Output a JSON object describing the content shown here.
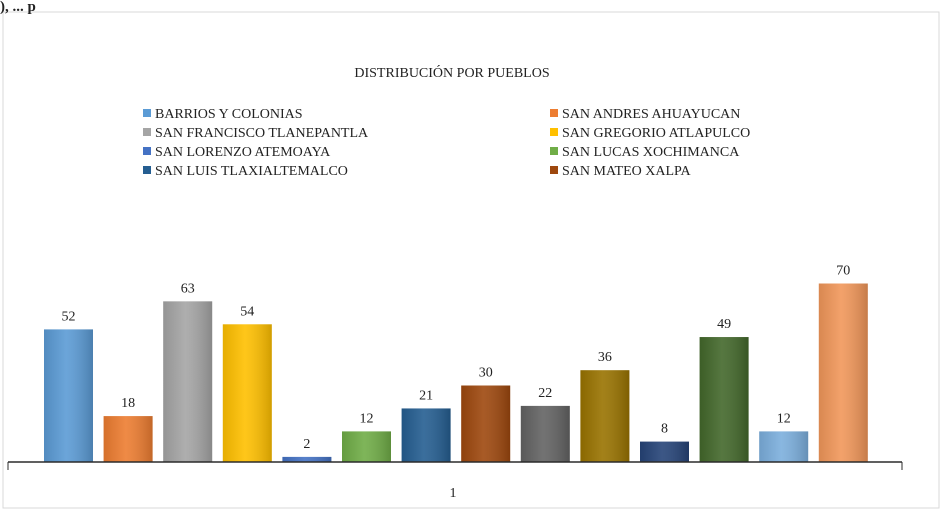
{
  "header": {
    "text": "), ... p"
  },
  "chart_data": {
    "type": "bar",
    "title": "DISTRIBUCIÓN POR PUEBLOS",
    "xlabel": "",
    "ylabel": "",
    "categories": [
      "1"
    ],
    "ylim": [
      0,
      75
    ],
    "grid": false,
    "legend_position": "top",
    "series": [
      {
        "name": "BARRIOS Y COLONIAS",
        "values": [
          52
        ],
        "color": "#5b9bd5"
      },
      {
        "name": "SAN ANDRES AHUAYUCAN",
        "values": [
          18
        ],
        "color": "#ed7d31"
      },
      {
        "name": "SAN FRANCISCO TLANEPANTLA",
        "values": [
          63
        ],
        "color": "#a5a5a5"
      },
      {
        "name": "SAN GREGORIO ATLAPULCO",
        "values": [
          54
        ],
        "color": "#ffc000"
      },
      {
        "name": "SAN LORENZO ATEMOAYA",
        "values": [
          2
        ],
        "color": "#4472c4"
      },
      {
        "name": "SAN LUCAS XOCHIMANCA",
        "values": [
          12
        ],
        "color": "#70ad47"
      },
      {
        "name": "SAN LUIS TLAXIALTEMALCO",
        "values": [
          21
        ],
        "color": "#255e91"
      },
      {
        "name": "SAN MATEO XALPA",
        "values": [
          30
        ],
        "color": "#9e480e"
      },
      {
        "name": "",
        "values": [
          22
        ],
        "color": "#636363"
      },
      {
        "name": "",
        "values": [
          36
        ],
        "color": "#997300"
      },
      {
        "name": "",
        "values": [
          8
        ],
        "color": "#264478"
      },
      {
        "name": "",
        "values": [
          49
        ],
        "color": "#43682b"
      },
      {
        "name": "",
        "values": [
          12
        ],
        "color": "#7cafdd"
      },
      {
        "name": "",
        "values": [
          70
        ],
        "color": "#f1975a"
      }
    ]
  }
}
